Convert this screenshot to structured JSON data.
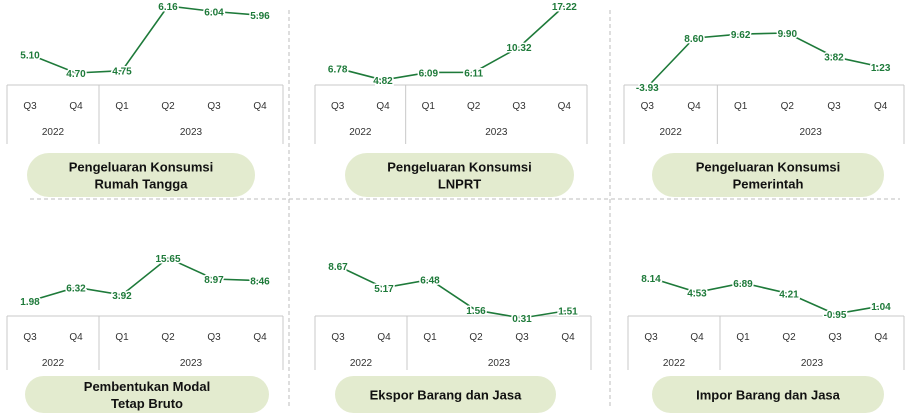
{
  "colors": {
    "line": "#1e7a3a",
    "pill": "#e3ebcf",
    "axis": "#c8c8c8",
    "divider": "#bdbdbd"
  },
  "quarters": [
    "Q3",
    "Q4",
    "Q1",
    "Q2",
    "Q3",
    "Q4"
  ],
  "years": [
    "2022",
    "2023"
  ],
  "chart_data": [
    {
      "type": "line",
      "title_lines": [
        "Pengeluaran Konsumsi",
        "Rumah Tangga"
      ],
      "categories": [
        "Q3 2022",
        "Q4 2022",
        "Q1 2023",
        "Q2 2023",
        "Q3 2023",
        "Q4 2023"
      ],
      "values": [
        5.1,
        4.7,
        4.75,
        6.16,
        6.04,
        5.96
      ],
      "labels": [
        "5.10",
        "4.70",
        "4.75",
        "6.16",
        "6.04",
        "5.96"
      ]
    },
    {
      "type": "line",
      "title_lines": [
        "Pengeluaran Konsumsi",
        "LNPRT"
      ],
      "categories": [
        "Q3 2022",
        "Q4 2022",
        "Q1 2023",
        "Q2 2023",
        "Q3 2023",
        "Q4 2023"
      ],
      "values": [
        6.78,
        4.82,
        6.09,
        6.11,
        10.32,
        17.22
      ],
      "labels": [
        "6.78",
        "4.82",
        "6.09",
        "6.11",
        "10.32",
        "17.22"
      ]
    },
    {
      "type": "line",
      "title_lines": [
        "Pengeluaran Konsumsi",
        "Pemerintah"
      ],
      "categories": [
        "Q3 2022",
        "Q4 2022",
        "Q1 2023",
        "Q2 2023",
        "Q3 2023",
        "Q4 2023"
      ],
      "values": [
        -3.93,
        8.6,
        9.62,
        9.9,
        3.82,
        1.23
      ],
      "labels": [
        "-3.93",
        "8.60",
        "9.62",
        "9.90",
        "3.82",
        "1.23"
      ]
    },
    {
      "type": "line",
      "title_lines": [
        "Pembentukan Modal",
        "Tetap Bruto"
      ],
      "categories": [
        "Q3 2022",
        "Q4 2022",
        "Q1 2023",
        "Q2 2023",
        "Q3 2023",
        "Q4 2023"
      ],
      "values": [
        1.98,
        6.32,
        3.92,
        15.65,
        8.97,
        8.46
      ],
      "labels": [
        "1.98",
        "6.32",
        "3.92",
        "15.65",
        "8.97",
        "8.46"
      ]
    },
    {
      "type": "line",
      "title_lines": [
        "Ekspor Barang dan Jasa"
      ],
      "categories": [
        "Q3 2022",
        "Q4 2022",
        "Q1 2023",
        "Q2 2023",
        "Q3 2023",
        "Q4 2023"
      ],
      "values": [
        8.67,
        5.17,
        6.48,
        1.56,
        0.31,
        1.51
      ],
      "labels": [
        "8.67",
        "5.17",
        "6.48",
        "1.56",
        "0.31",
        "1.51"
      ]
    },
    {
      "type": "line",
      "title_lines": [
        "Impor Barang dan Jasa"
      ],
      "categories": [
        "Q3 2022",
        "Q4 2022",
        "Q1 2023",
        "Q2 2023",
        "Q3 2023",
        "Q4 2023"
      ],
      "values": [
        8.14,
        4.53,
        6.89,
        4.21,
        -0.95,
        1.04
      ],
      "labels": [
        "8.14",
        "4.53",
        "6.89",
        "4.21",
        "-0.95",
        "1.04"
      ]
    }
  ]
}
